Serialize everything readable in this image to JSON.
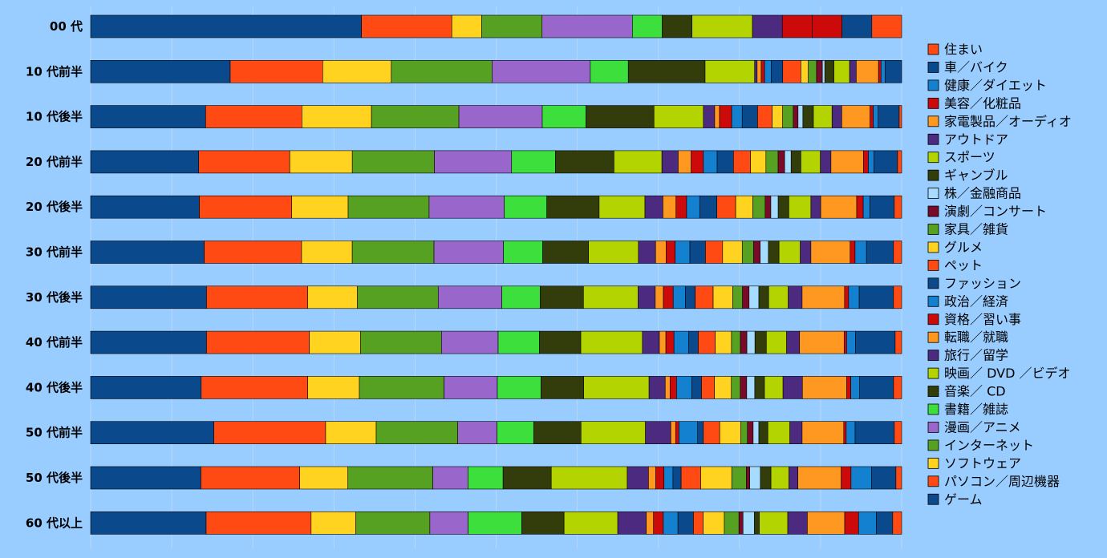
{
  "colors": {
    "background": "#99ccff",
    "game": "#0a4a8c",
    "pc_peripherals": "#ff4a14",
    "software": "#ffd31f",
    "internet": "#56a022",
    "manga_anime": "#9966cc",
    "books_magazines": "#3ddf3d",
    "music_cd": "#333d0c",
    "movies_dvd_video": "#b3d400",
    "travel_study": "#4c2a80",
    "job_change": "#ff9820",
    "qualifications": "#cc0a0a",
    "politics_economy": "#1380d0",
    "fashion": "#0a4a8c",
    "pets": "#ff4a14",
    "gourmet": "#ffd31f",
    "furniture_goods": "#56a022",
    "theater_concert": "#7a0a2a",
    "stocks_finance": "#a6dcff",
    "gambling": "#333d0c",
    "sports": "#b3d400",
    "outdoor": "#4c2a80",
    "home_electronics_audio": "#ff9820",
    "beauty_cosmetics": "#cc0a0a",
    "health_diet": "#1380d0",
    "cars_bikes": "#0a4a8c",
    "housing": "#ff4a14"
  },
  "chart_data": {
    "type": "stacked-bar-horizontal-100pct",
    "title": "",
    "xlabel": "",
    "ylabel": "",
    "xlim": [
      0,
      100
    ],
    "categories": [
      "00 代",
      "10 代前半",
      "10 代後半",
      "20 代前半",
      "20 代後半",
      "30 代前半",
      "30 代後半",
      "40 代前半",
      "40 代後半",
      "50 代前半",
      "50 代後半",
      "60 代以上"
    ],
    "series": [
      {
        "name": "ゲーム",
        "color_key": "game",
        "values": [
          34.5,
          16.9,
          14.2,
          13.3,
          13.3,
          13.9,
          14.2,
          14.3,
          13.7,
          15.1,
          13.5,
          14.2
        ]
      },
      {
        "name": "パソコン／周辺機器",
        "color_key": "pc_peripherals",
        "values": [
          11.5,
          11.2,
          11.9,
          11.2,
          11.3,
          11.9,
          12.4,
          12.7,
          13.2,
          13.7,
          12.1,
          12.9
        ]
      },
      {
        "name": "ソフトウェア",
        "color_key": "software",
        "values": [
          3.8,
          8.3,
          8.6,
          7.7,
          6.9,
          6.2,
          6.1,
          6.3,
          6.4,
          6.2,
          5.9,
          5.5
        ]
      },
      {
        "name": "インターネット",
        "color_key": "internet",
        "values": [
          7.7,
          12.2,
          10.8,
          10.1,
          9.9,
          10.0,
          9.9,
          10.0,
          10.5,
          10.0,
          10.4,
          9.1
        ]
      },
      {
        "name": "漫画／アニメ",
        "color_key": "manga_anime",
        "values": [
          11.5,
          11.9,
          10.3,
          9.5,
          9.2,
          8.5,
          7.8,
          7.0,
          6.6,
          4.8,
          4.3,
          4.7
        ]
      },
      {
        "name": "書籍／雑誌",
        "color_key": "books_magazines",
        "values": [
          3.8,
          4.6,
          5.4,
          5.4,
          5.2,
          4.8,
          4.7,
          5.1,
          5.4,
          4.5,
          4.3,
          6.6
        ]
      },
      {
        "name": "音楽／ CD",
        "color_key": "music_cd",
        "values": [
          3.8,
          9.3,
          8.4,
          7.2,
          6.4,
          5.6,
          5.3,
          5.1,
          5.3,
          5.8,
          5.9,
          5.2
        ]
      },
      {
        "name": "映画／ DVD ／ビデオ",
        "color_key": "movies_dvd_video",
        "values": [
          7.7,
          6.0,
          6.1,
          5.9,
          5.6,
          6.1,
          6.7,
          7.6,
          8.1,
          7.9,
          9.3,
          6.6
        ]
      },
      {
        "name": "旅行／留学",
        "color_key": "travel_study",
        "values": [
          3.8,
          0.3,
          1.4,
          2.0,
          2.2,
          2.1,
          2.1,
          2.1,
          2.0,
          3.1,
          2.6,
          3.5
        ]
      },
      {
        "name": "転職／就職",
        "color_key": "job_change",
        "values": [
          0,
          0.5,
          0.6,
          1.6,
          1.6,
          1.3,
          1.0,
          0.8,
          0.6,
          0.6,
          0.9,
          0.9
        ]
      },
      {
        "name": "資格／習い事",
        "color_key": "qualifications",
        "values": [
          3.8,
          0.4,
          1.5,
          1.5,
          1.3,
          1.1,
          1.2,
          1.0,
          0.8,
          0.4,
          1.0,
          1.2
        ]
      },
      {
        "name": "政治／経済",
        "color_key": "politics_economy",
        "values": [
          0,
          0.8,
          1.3,
          1.7,
          1.6,
          1.8,
          1.5,
          1.8,
          1.9,
          2.3,
          1.1,
          1.8
        ]
      },
      {
        "name": "ファッション",
        "color_key": "fashion",
        "values": [
          0,
          1.4,
          1.9,
          2.0,
          2.1,
          1.9,
          1.2,
          1.2,
          1.2,
          0.7,
          1.0,
          1.9
        ]
      },
      {
        "name": "ペット",
        "color_key": "pets",
        "values": [
          0,
          2.2,
          1.8,
          2.1,
          2.3,
          2.1,
          2.2,
          2.1,
          1.6,
          2.0,
          2.4,
          1.2
        ]
      },
      {
        "name": "グルメ",
        "color_key": "gourmet",
        "values": [
          0,
          0.9,
          1.3,
          1.9,
          2.1,
          2.4,
          2.4,
          2.0,
          2.1,
          2.6,
          3.8,
          2.6
        ]
      },
      {
        "name": "家具／雑貨",
        "color_key": "furniture_goods",
        "values": [
          0,
          1.0,
          1.3,
          1.5,
          1.5,
          1.4,
          1.2,
          1.1,
          1.1,
          0.8,
          1.8,
          1.8
        ]
      },
      {
        "name": "演劇／コンサート",
        "color_key": "theater_concert",
        "values": [
          0,
          0.7,
          0.6,
          0.8,
          0.7,
          0.8,
          0.8,
          0.8,
          0.8,
          0.7,
          0.4,
          0.5
        ]
      },
      {
        "name": "株／金融商品",
        "color_key": "stocks_finance",
        "values": [
          0,
          0.3,
          0.6,
          0.8,
          0.9,
          1.0,
          1.2,
          1.0,
          1.0,
          0.7,
          1.3,
          1.4
        ]
      },
      {
        "name": "ギャンブル",
        "color_key": "gambling",
        "values": [
          0,
          1.1,
          1.3,
          1.2,
          1.3,
          1.3,
          1.2,
          1.4,
          1.2,
          1.1,
          1.3,
          0.6
        ]
      },
      {
        "name": "スポーツ",
        "color_key": "sports",
        "values": [
          0,
          1.9,
          2.3,
          2.4,
          2.7,
          2.6,
          2.4,
          2.5,
          2.3,
          2.7,
          2.2,
          3.5
        ]
      },
      {
        "name": "アウトドア",
        "color_key": "outdoor",
        "values": [
          0,
          0.8,
          1.2,
          1.3,
          1.2,
          1.3,
          1.7,
          1.6,
          2.4,
          1.5,
          1.1,
          2.4
        ]
      },
      {
        "name": "家電製品／オーディオ",
        "color_key": "home_electronics_audio",
        "values": [
          0,
          2.7,
          3.5,
          4.0,
          4.4,
          4.8,
          5.2,
          5.5,
          5.5,
          5.1,
          5.3,
          4.6
        ]
      },
      {
        "name": "美容／化粧品",
        "color_key": "beauty_cosmetics",
        "values": [
          3.8,
          0.3,
          0.4,
          0.6,
          0.8,
          0.6,
          0.5,
          0.3,
          0.5,
          0.3,
          1.2,
          1.7
        ]
      },
      {
        "name": "健康／ダイエット",
        "color_key": "health_diet",
        "values": [
          0,
          0.5,
          0.6,
          0.7,
          0.8,
          1.4,
          1.3,
          1.1,
          1.1,
          1.1,
          2.5,
          2.2
        ]
      },
      {
        "name": "車／バイク",
        "color_key": "cars_bikes",
        "values": [
          3.8,
          2.0,
          2.6,
          2.9,
          3.0,
          3.3,
          4.2,
          4.9,
          4.2,
          4.8,
          3.0,
          2.0
        ]
      },
      {
        "name": "住まい",
        "color_key": "housing",
        "values": [
          3.8,
          0,
          0.3,
          0.5,
          0.9,
          1.0,
          1.0,
          0.8,
          1.0,
          0.9,
          0.7,
          1.1
        ]
      }
    ],
    "legend": {
      "placement": "right",
      "items": [
        "住まい",
        "車／バイク",
        "健康／ダイエット",
        "美容／化粧品",
        "家電製品／オーディオ",
        "アウトドア",
        "スポーツ",
        "ギャンブル",
        "株／金融商品",
        "演劇／コンサート",
        "家具／雑貨",
        "グルメ",
        "ペット",
        "ファッション",
        "政治／経済",
        "資格／習い事",
        "転職／就職",
        "旅行／留学",
        "映画／ DVD ／ビデオ",
        "音楽／ CD",
        "書籍／雑誌",
        "漫画／アニメ",
        "インターネット",
        "ソフトウェア",
        "パソコン／周辺機器",
        "ゲーム"
      ]
    },
    "grid": true
  }
}
